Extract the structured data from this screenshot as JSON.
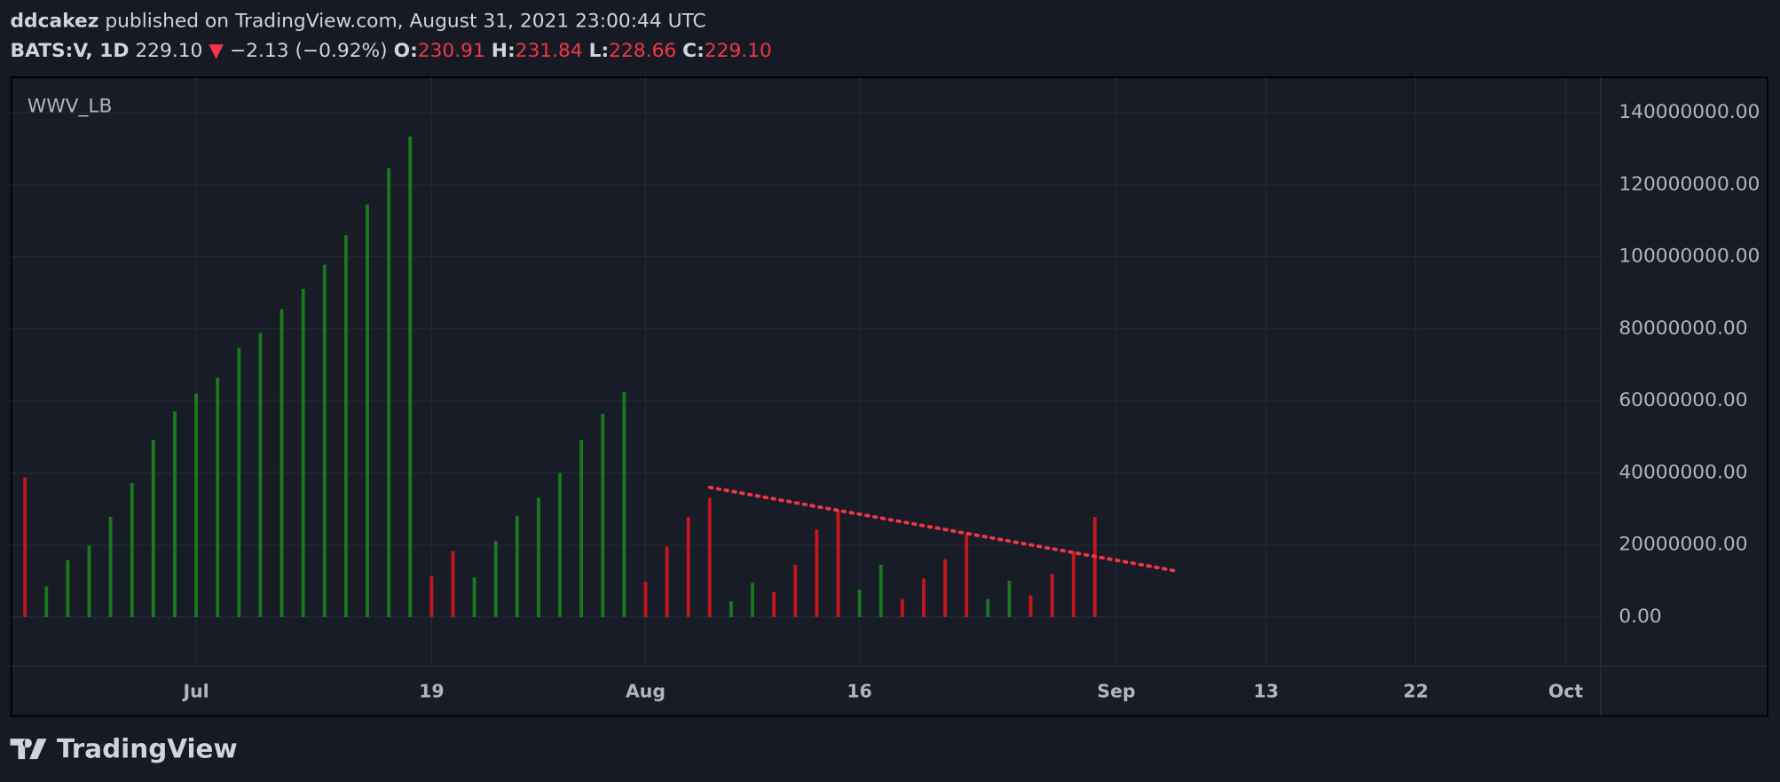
{
  "header": {
    "author": "ddcakez",
    "published": "published on TradingView.com, August 31, 2021 23:00:44 UTC",
    "symbol": "BATS:V, 1D",
    "price": "229.10",
    "arrow": "▼",
    "change": "−2.13 (−0.92%)",
    "o_label": "O:",
    "o": "230.91",
    "h_label": "H:",
    "h": "231.84",
    "l_label": "L:",
    "l": "228.66",
    "c_label": "C:",
    "c": "229.10"
  },
  "chart_data": {
    "type": "bar",
    "title": "WWV_LB",
    "categories": [
      null,
      null,
      null,
      null,
      null,
      null,
      null,
      null,
      "Jul",
      null,
      null,
      null,
      null,
      null,
      null,
      null,
      null,
      null,
      null,
      "19",
      null,
      null,
      null,
      null,
      null,
      null,
      null,
      null,
      null,
      "Aug",
      null,
      null,
      null,
      null,
      null,
      null,
      null,
      null,
      null,
      "16",
      null,
      null,
      null,
      null,
      null,
      null,
      null,
      null,
      null,
      null,
      null,
      "Sep",
      null,
      null,
      null,
      null,
      null,
      null,
      "13",
      null,
      null,
      null,
      null,
      null,
      null,
      "22",
      null,
      null,
      null,
      null,
      null,
      null,
      "Oct"
    ],
    "values": [
      38800000,
      8500000,
      15800000,
      19900000,
      27800000,
      37200000,
      49200000,
      57100000,
      62100000,
      66500000,
      74700000,
      78800000,
      85500000,
      91100000,
      97800000,
      106000000,
      114500000,
      124600000,
      133400000,
      11400000,
      18300000,
      11000000,
      21100000,
      28100000,
      33100000,
      40000000,
      49200000,
      56400000,
      62400000,
      9800000,
      19600000,
      27800000,
      33100000,
      4400000,
      9500000,
      6900000,
      14500000,
      24300000,
      29600000,
      7600000,
      14500000,
      5000000,
      10700000,
      16100000,
      23000000,
      5000000,
      10100000,
      6000000,
      12000000,
      18300000,
      27800000,
      null,
      null,
      null,
      null,
      null,
      null,
      null,
      null,
      null,
      null,
      null,
      null,
      null,
      null,
      null,
      null,
      null,
      null,
      null,
      null,
      null,
      null
    ],
    "colors": [
      "#c4161c",
      "#187a1d",
      "#187a1d",
      "#187a1d",
      "#187a1d",
      "#187a1d",
      "#187a1d",
      "#187a1d",
      "#187a1d",
      "#187a1d",
      "#187a1d",
      "#187a1d",
      "#187a1d",
      "#187a1d",
      "#187a1d",
      "#187a1d",
      "#187a1d",
      "#187a1d",
      "#187a1d",
      "#c4161c",
      "#c4161c",
      "#187a1d",
      "#187a1d",
      "#187a1d",
      "#187a1d",
      "#187a1d",
      "#187a1d",
      "#187a1d",
      "#187a1d",
      "#c4161c",
      "#c4161c",
      "#c4161c",
      "#c4161c",
      "#187a1d",
      "#187a1d",
      "#c4161c",
      "#c4161c",
      "#c4161c",
      "#c4161c",
      "#187a1d",
      "#187a1d",
      "#c4161c",
      "#c4161c",
      "#c4161c",
      "#c4161c",
      "#187a1d",
      "#187a1d",
      "#c4161c",
      "#c4161c",
      "#c4161c",
      "#c4161c",
      null,
      null,
      null,
      null,
      null,
      null,
      null,
      null,
      null,
      null,
      null,
      null,
      null,
      null,
      null,
      null,
      null,
      null,
      null,
      null,
      null,
      null
    ],
    "ylim": [
      -13600000,
      149800000
    ],
    "yticks": [
      {
        "value": 0,
        "label": "0.00"
      },
      {
        "value": 20000000,
        "label": "20000000.00"
      },
      {
        "value": 40000000,
        "label": "40000000.00"
      },
      {
        "value": 60000000,
        "label": "60000000.00"
      },
      {
        "value": 80000000,
        "label": "80000000.00"
      },
      {
        "value": 100000000,
        "label": "100000000.00"
      },
      {
        "value": 120000000,
        "label": "120000000.00"
      },
      {
        "value": 140000000,
        "label": "140000000.00"
      }
    ],
    "grid": true,
    "trendline": {
      "x": [
        32,
        53.7
      ],
      "y": [
        36000000,
        12900000
      ],
      "color": "#f23645"
    }
  },
  "footer": {
    "logo": "TradingView"
  }
}
